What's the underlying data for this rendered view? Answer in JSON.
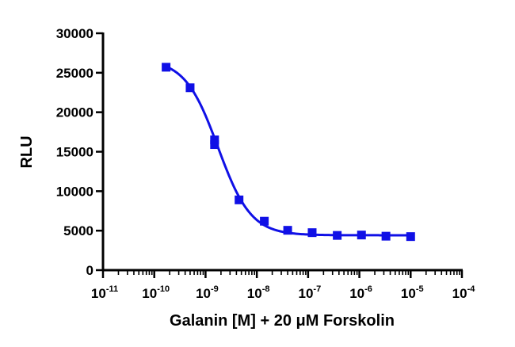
{
  "chart_data": {
    "type": "scatter",
    "title": "",
    "xlabel": "Galanin [M] + 20 μM Forskolin",
    "ylabel": "RLU",
    "x_scale": "log",
    "xlim": [
      1e-11,
      0.0001
    ],
    "ylim": [
      0,
      30000
    ],
    "x_ticks": [
      {
        "value": 1e-11,
        "base": "10",
        "exp": "-11"
      },
      {
        "value": 1e-10,
        "base": "10",
        "exp": "-10"
      },
      {
        "value": 1e-09,
        "base": "10",
        "exp": "-9"
      },
      {
        "value": 1e-08,
        "base": "10",
        "exp": "-8"
      },
      {
        "value": 1e-07,
        "base": "10",
        "exp": "-7"
      },
      {
        "value": 1e-06,
        "base": "10",
        "exp": "-6"
      },
      {
        "value": 1e-05,
        "base": "10",
        "exp": "-5"
      },
      {
        "value": 0.0001,
        "base": "10",
        "exp": "-4"
      }
    ],
    "y_ticks": [
      {
        "value": 0,
        "label": "0"
      },
      {
        "value": 5000,
        "label": "5000"
      },
      {
        "value": 10000,
        "label": "10000"
      },
      {
        "value": 15000,
        "label": "15000"
      },
      {
        "value": 20000,
        "label": "20000"
      },
      {
        "value": 25000,
        "label": "25000"
      },
      {
        "value": 30000,
        "label": "30000"
      }
    ],
    "grid": false,
    "legend": "none",
    "series": [
      {
        "color": "#1010e6",
        "marker": "square",
        "points": [
          {
            "x": 1.7e-10,
            "y": 25700
          },
          {
            "x": 5e-10,
            "y": 23100
          },
          {
            "x": 1.5e-09,
            "y": 16500
          },
          {
            "x": 1.5e-09,
            "y": 15900
          },
          {
            "x": 4.5e-09,
            "y": 8900
          },
          {
            "x": 1.4e-08,
            "y": 6200
          },
          {
            "x": 4e-08,
            "y": 5050
          },
          {
            "x": 1.2e-07,
            "y": 4750
          },
          {
            "x": 3.7e-07,
            "y": 4400
          },
          {
            "x": 1.1e-06,
            "y": 4450
          },
          {
            "x": 3.3e-06,
            "y": 4300
          },
          {
            "x": 1e-05,
            "y": 4250
          }
        ],
        "fit": {
          "model": "four-parameter logistic",
          "top": 26700,
          "bottom": 4420,
          "ec50": 1.75e-09,
          "hill_slope": 1.35,
          "x_range": [
            1.5e-10,
            1e-05
          ]
        }
      }
    ]
  }
}
